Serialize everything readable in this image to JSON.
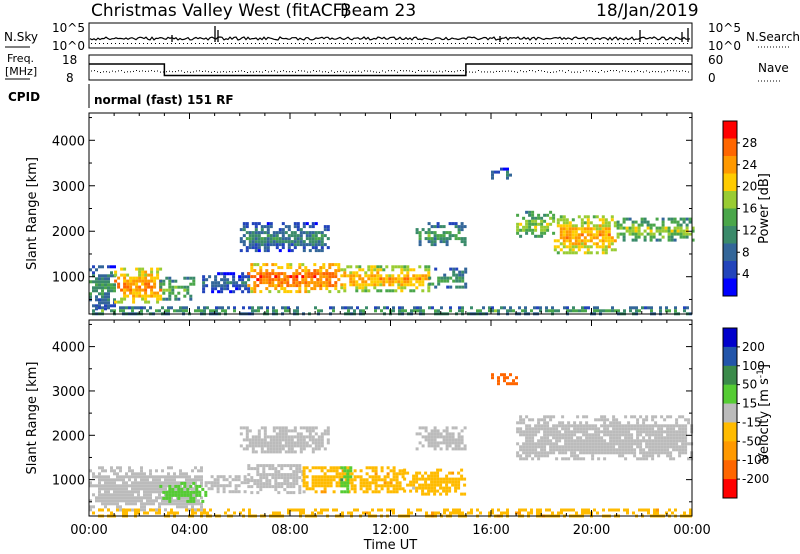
{
  "header": {
    "title": "Christmas Valley West (fitACF)",
    "beam": "Beam 23",
    "date": "18/Jan/2019"
  },
  "status_panels": {
    "nsky_label": "N.Sky",
    "nsearch_label": "N.Search",
    "noise_ticks": [
      "10^5",
      "10^0"
    ],
    "freq_label_line1": "Freq.",
    "freq_label_line2": "[MHz]",
    "freq_ticks": [
      "18",
      "8"
    ],
    "nave_label": "Nave",
    "nave_ticks": [
      "60",
      "0"
    ],
    "cpid_label": "CPID",
    "cpid_text": "normal (fast) 151 RF"
  },
  "colors": {
    "power_scale": [
      "#0000ff",
      "#2244bb",
      "#336699",
      "#3a8a6a",
      "#4aa64a",
      "#99cc33",
      "#ffcc00",
      "#ff9900",
      "#ff6600",
      "#ff0000"
    ],
    "velocity_scale": [
      "#0000cc",
      "#2255aa",
      "#3a8a4a",
      "#55cc33",
      "#bbbbbb",
      "#ffbb00",
      "#ff9900",
      "#ff6600",
      "#ff0000"
    ],
    "ground_scatter": "#bbbbbb"
  },
  "chart_data": [
    {
      "type": "heatmap",
      "name": "power",
      "ylabel": "Slant Range [km]",
      "xlim_hours": [
        0,
        24
      ],
      "ylim_km": [
        180,
        4600
      ],
      "yticks": [
        1000,
        2000,
        3000,
        4000
      ],
      "colorbar": {
        "label": "Power [dB]",
        "range": [
          0,
          32
        ],
        "ticks": [
          4,
          8,
          12,
          16,
          20,
          24,
          28
        ]
      },
      "regions": [
        {
          "t0": 0.0,
          "t1": 1.0,
          "r0": 300,
          "r1": 1250,
          "value": 9
        },
        {
          "t0": 1.0,
          "t1": 2.8,
          "r0": 450,
          "r1": 1200,
          "value": 22
        },
        {
          "t0": 2.8,
          "t1": 4.2,
          "r0": 500,
          "r1": 1000,
          "value": 12
        },
        {
          "t0": 4.5,
          "t1": 6.3,
          "r0": 700,
          "r1": 1100,
          "value": 6
        },
        {
          "t0": 6.3,
          "t1": 10.0,
          "r0": 700,
          "r1": 1300,
          "value": 24
        },
        {
          "t0": 10.0,
          "t1": 13.5,
          "r0": 700,
          "r1": 1250,
          "value": 20
        },
        {
          "t0": 13.5,
          "t1": 15.0,
          "r0": 750,
          "r1": 1200,
          "value": 10
        },
        {
          "t0": 6.0,
          "t1": 9.5,
          "r0": 1600,
          "r1": 2200,
          "value": 8
        },
        {
          "t0": 13.0,
          "t1": 15.0,
          "r0": 1700,
          "r1": 2200,
          "value": 10
        },
        {
          "t0": 17.0,
          "t1": 18.5,
          "r0": 1900,
          "r1": 2450,
          "value": 14
        },
        {
          "t0": 18.5,
          "t1": 21.0,
          "r0": 1500,
          "r1": 2350,
          "value": 20
        },
        {
          "t0": 21.0,
          "t1": 24.0,
          "r0": 1800,
          "r1": 2300,
          "value": 14
        },
        {
          "t0": 16.0,
          "t1": 17.0,
          "r0": 3150,
          "r1": 3400,
          "value": 6
        },
        {
          "t0": 0.0,
          "t1": 24.0,
          "r0": 200,
          "r1": 350,
          "value": 10
        }
      ]
    },
    {
      "type": "heatmap",
      "name": "velocity",
      "ylabel": "Slant Range [km]",
      "xlabel": "Time UT",
      "xlim_hours": [
        0,
        24
      ],
      "ylim_km": [
        180,
        4600
      ],
      "yticks": [
        1000,
        2000,
        3000,
        4000
      ],
      "xticks": [
        "00:00",
        "04:00",
        "08:00",
        "12:00",
        "16:00",
        "20:00",
        "00:00"
      ],
      "colorbar": {
        "label": "Velocity [m s",
        "label_superscript": "-1",
        "label_close": "]",
        "ticks": [
          "200",
          "100",
          "50",
          "15",
          "-15",
          "-50",
          "-100",
          "-200"
        ]
      },
      "regions": [
        {
          "t0": 0.0,
          "t1": 4.5,
          "r0": 300,
          "r1": 1300,
          "value": "gs"
        },
        {
          "t0": 2.8,
          "t1": 4.6,
          "r0": 500,
          "r1": 950,
          "value": 30
        },
        {
          "t0": 4.6,
          "t1": 6.3,
          "r0": 700,
          "r1": 1100,
          "value": "gs"
        },
        {
          "t0": 6.3,
          "t1": 8.5,
          "r0": 700,
          "r1": 1350,
          "value": "gs"
        },
        {
          "t0": 8.5,
          "t1": 12.5,
          "r0": 700,
          "r1": 1300,
          "value": -40
        },
        {
          "t0": 10.0,
          "t1": 10.4,
          "r0": 700,
          "r1": 1300,
          "value": 30
        },
        {
          "t0": 12.5,
          "t1": 15.0,
          "r0": 700,
          "r1": 1250,
          "value": -40
        },
        {
          "t0": 6.0,
          "t1": 9.5,
          "r0": 1600,
          "r1": 2200,
          "value": "gs"
        },
        {
          "t0": 13.0,
          "t1": 15.0,
          "r0": 1700,
          "r1": 2200,
          "value": "gs"
        },
        {
          "t0": 17.0,
          "t1": 24.0,
          "r0": 1500,
          "r1": 2450,
          "value": "gs"
        },
        {
          "t0": 16.0,
          "t1": 17.0,
          "r0": 3150,
          "r1": 3400,
          "value": -150
        },
        {
          "t0": 0.0,
          "t1": 24.0,
          "r0": 200,
          "r1": 350,
          "value": -40
        }
      ]
    }
  ],
  "freq_trace": {
    "unit": "MHz",
    "segments": [
      {
        "t0": 0.0,
        "t1": 3.0,
        "value": 14.8
      },
      {
        "t0": 3.0,
        "t1": 15.0,
        "value": 9.6
      },
      {
        "t0": 15.0,
        "t1": 24.0,
        "value": 14.8
      }
    ]
  }
}
